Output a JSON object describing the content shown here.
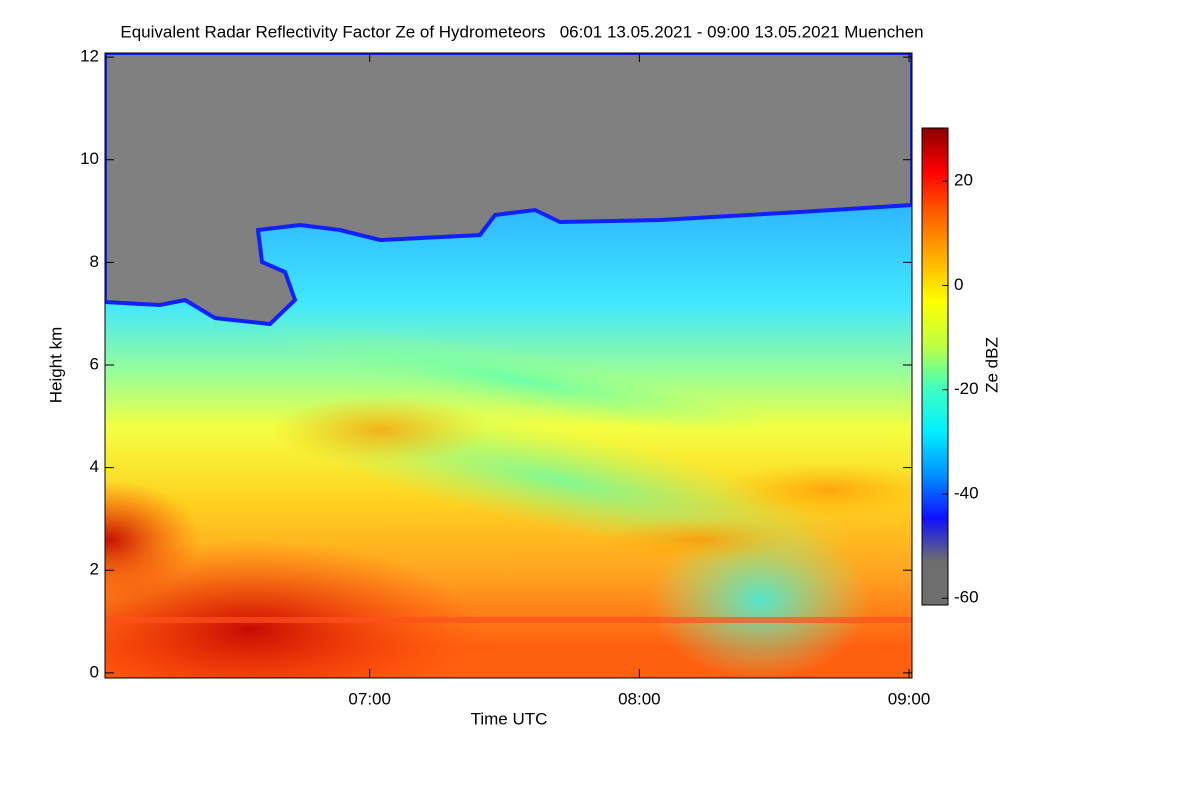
{
  "chart_data": {
    "type": "heatmap",
    "title": "Equivalent Radar Reflectivity Factor Ze of Hydrometeors   06:01 13.05.2021 - 09:00 13.05.2021 Muenchen",
    "xlabel": "Time UTC",
    "ylabel": "Height km",
    "xlim": [
      6.0185,
      9.011
    ],
    "xticks": [
      {
        "value": 7,
        "label": "07:00"
      },
      {
        "value": 8,
        "label": "08:00"
      },
      {
        "value": 9,
        "label": "09:00"
      }
    ],
    "ylim": [
      -0.1,
      12.08
    ],
    "yticks": [
      0,
      2,
      4,
      6,
      8,
      10,
      12
    ],
    "colorbar": {
      "label": "Ze dBZ",
      "lim": [
        -61.3,
        30.2
      ],
      "ticks": [
        -60,
        -40,
        -20,
        0,
        20
      ],
      "colors": [
        "#6e6e6e",
        "#6e6e6e",
        "#1010ff",
        "#0090ff",
        "#00f0ff",
        "#40ffc0",
        "#c0ff40",
        "#ffff00",
        "#ffb000",
        "#ff6000",
        "#ff0000",
        "#8b0000"
      ]
    }
  }
}
